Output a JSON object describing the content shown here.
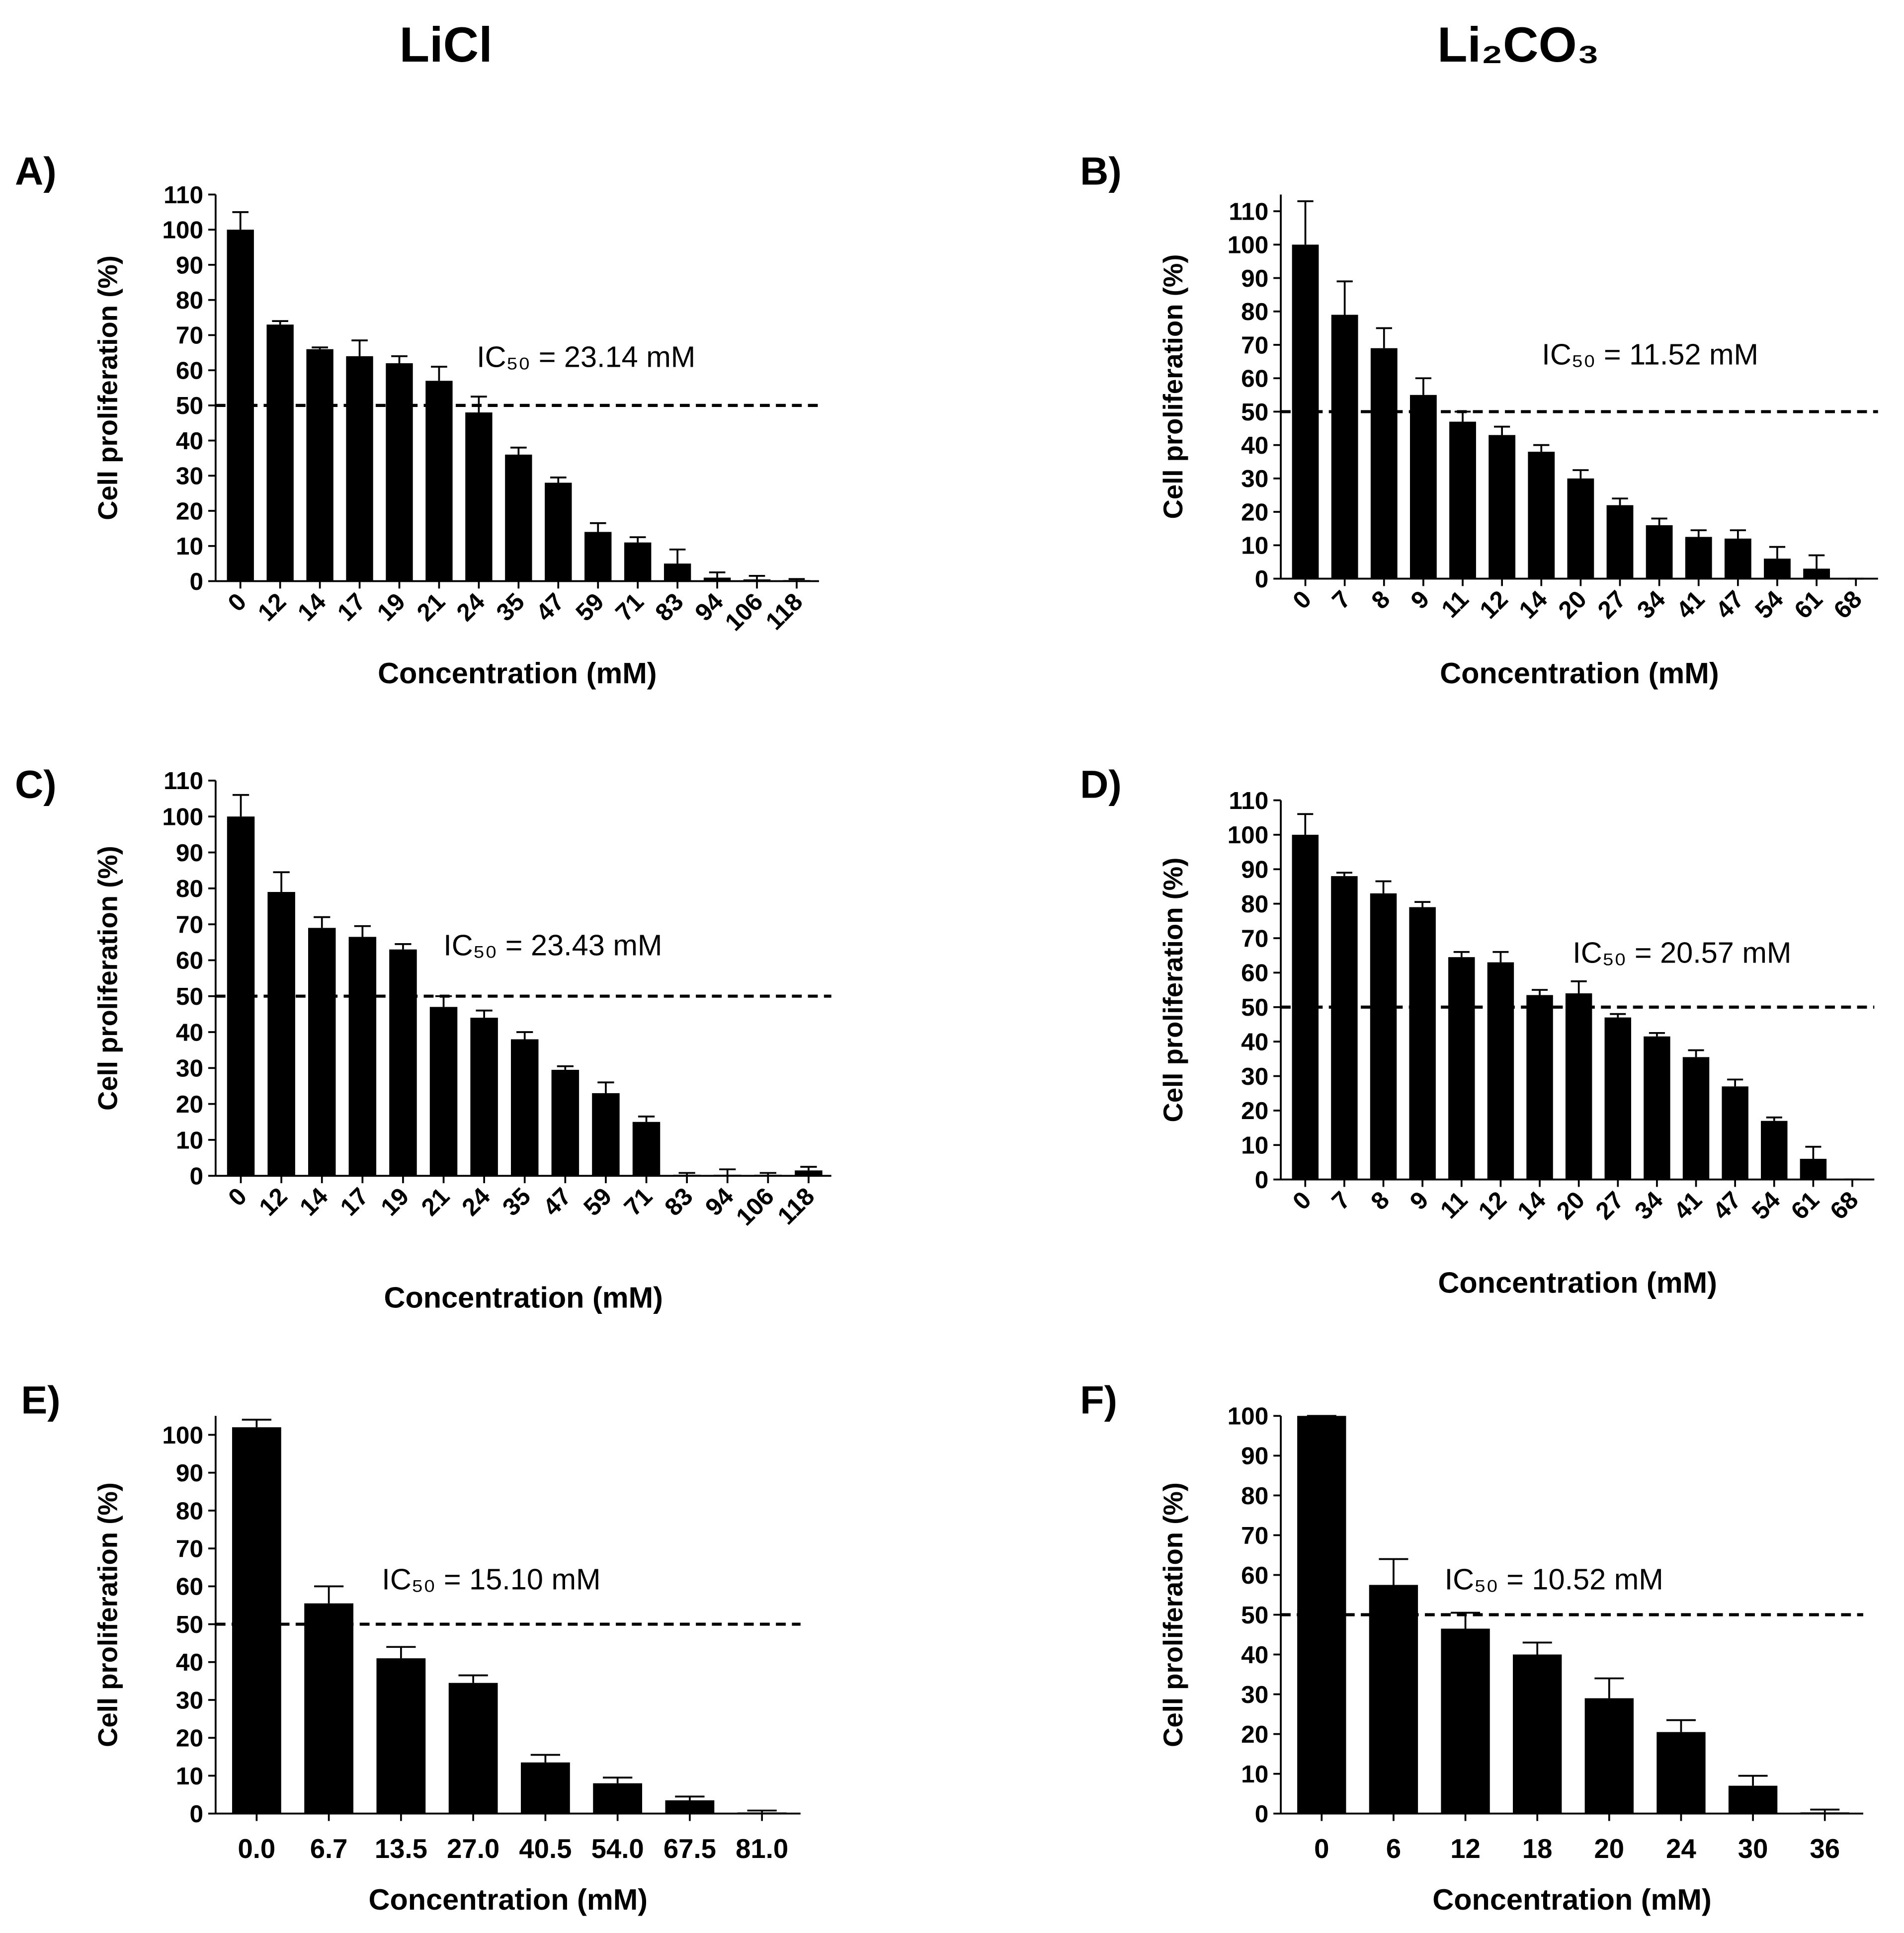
{
  "headers": [
    "LiCl",
    "Li₂CO₃"
  ],
  "chart_data": [
    {
      "type": "bar",
      "panel": "A)",
      "annotation": "IC₅₀ = 23.14 mM",
      "ylabel": "Cell proliferation (%)",
      "xlabel": "Concentration (mM)",
      "hline": 50,
      "color": "#000000",
      "categories": [
        "0",
        "12",
        "14",
        "17",
        "19",
        "21",
        "24",
        "35",
        "47",
        "59",
        "71",
        "83",
        "94",
        "106",
        "118"
      ],
      "values": [
        100,
        73,
        66,
        64,
        62,
        57,
        48,
        36,
        28,
        14,
        11,
        5,
        1,
        0.5,
        0.3
      ],
      "errors": [
        5,
        1,
        0.5,
        4.5,
        2,
        4,
        4.5,
        2,
        1.5,
        2.5,
        1.5,
        4,
        1.5,
        1,
        0.3
      ],
      "ylim": [
        0,
        110
      ],
      "yticks": [
        0,
        10,
        20,
        30,
        40,
        50,
        60,
        70,
        80,
        90,
        100,
        110
      ]
    },
    {
      "type": "bar",
      "panel": "B)",
      "annotation": "IC₅₀ = 11.52 mM",
      "ylabel": "Cell proliferation (%)",
      "xlabel": "Concentration (mM)",
      "hline": 50,
      "color": "#000000",
      "categories": [
        "0",
        "7",
        "8",
        "9",
        "11",
        "12",
        "14",
        "20",
        "27",
        "34",
        "41",
        "47",
        "54",
        "61",
        "68"
      ],
      "values": [
        100,
        79,
        69,
        55,
        47,
        43,
        38,
        30,
        22,
        16,
        12.5,
        12,
        6,
        3,
        0
      ],
      "errors": [
        13,
        10,
        6,
        5,
        3,
        2.5,
        2,
        2.5,
        2,
        2,
        2,
        2.5,
        3.5,
        4,
        0
      ],
      "ylim": [
        0,
        115
      ],
      "yticks": [
        0,
        10,
        20,
        30,
        40,
        50,
        60,
        70,
        80,
        90,
        100,
        110
      ]
    },
    {
      "type": "bar",
      "panel": "C)",
      "annotation": "IC₅₀ = 23.43 mM",
      "ylabel": "Cell proliferation (%)",
      "xlabel": "Concentration (mM)",
      "hline": 50,
      "color": "#000000",
      "categories": [
        "0",
        "12",
        "14",
        "17",
        "19",
        "21",
        "24",
        "35",
        "47",
        "59",
        "71",
        "83",
        "94",
        "106",
        "118"
      ],
      "values": [
        100,
        79,
        69,
        66.5,
        63,
        47,
        44,
        38,
        29.5,
        23,
        15,
        0.3,
        0.3,
        0.3,
        1.5
      ],
      "errors": [
        6,
        5.5,
        3,
        3,
        1.5,
        3,
        2,
        2,
        1,
        3,
        1.5,
        0.5,
        1.5,
        0.5,
        1
      ],
      "ylim": [
        0,
        110
      ],
      "yticks": [
        0,
        10,
        20,
        30,
        40,
        50,
        60,
        70,
        80,
        90,
        100,
        110
      ]
    },
    {
      "type": "bar",
      "panel": "D)",
      "annotation": "IC₅₀ = 20.57 mM",
      "ylabel": "Cell proliferation (%)",
      "xlabel": "Concentration (mM)",
      "hline": 50,
      "color": "#000000",
      "categories": [
        "0",
        "7",
        "8",
        "9",
        "11",
        "12",
        "14",
        "20",
        "27",
        "34",
        "41",
        "47",
        "54",
        "61",
        "68"
      ],
      "values": [
        100,
        88,
        83,
        79,
        64.5,
        63,
        53.5,
        54,
        47,
        41.5,
        35.5,
        27,
        17,
        6,
        0
      ],
      "errors": [
        6,
        1,
        3.5,
        1.5,
        1.5,
        3,
        1.5,
        3.5,
        1,
        1,
        2,
        2,
        1,
        3.5,
        0
      ],
      "ylim": [
        0,
        110
      ],
      "yticks": [
        0,
        10,
        20,
        30,
        40,
        50,
        60,
        70,
        80,
        90,
        100,
        110
      ]
    },
    {
      "type": "bar",
      "panel": "E)",
      "annotation": "IC₅₀ = 15.10 mM",
      "ylabel": "Cell proliferation (%)",
      "xlabel": "Concentration (mM)",
      "hline": 50,
      "color": "#000000",
      "categories": [
        "0.0",
        "6.7",
        "13.5",
        "27.0",
        "40.5",
        "54.0",
        "67.5",
        "81.0"
      ],
      "values": [
        102,
        55.5,
        41,
        34.5,
        13.5,
        8,
        3.5,
        0.3
      ],
      "errors": [
        2,
        4.5,
        3,
        2,
        2,
        1.5,
        1,
        0.5
      ],
      "ylim": [
        0,
        105
      ],
      "yticks": [
        0,
        10,
        20,
        30,
        40,
        50,
        60,
        70,
        80,
        90,
        100
      ]
    },
    {
      "type": "bar",
      "panel": "F)",
      "annotation": "IC₅₀ = 10.52 mM",
      "ylabel": "Cell proliferation (%)",
      "xlabel": "Concentration (mM)",
      "hline": 50,
      "color": "#000000",
      "categories": [
        "0",
        "6",
        "12",
        "18",
        "20",
        "24",
        "30",
        "36"
      ],
      "values": [
        100,
        57.5,
        46.5,
        40,
        29,
        20.5,
        7,
        0.3
      ],
      "errors": [
        0,
        6.5,
        4,
        3,
        5,
        3,
        2.5,
        0.7
      ],
      "ylim": [
        0,
        100
      ],
      "yticks": [
        0,
        10,
        20,
        30,
        40,
        50,
        60,
        70,
        80,
        90,
        100
      ]
    }
  ]
}
